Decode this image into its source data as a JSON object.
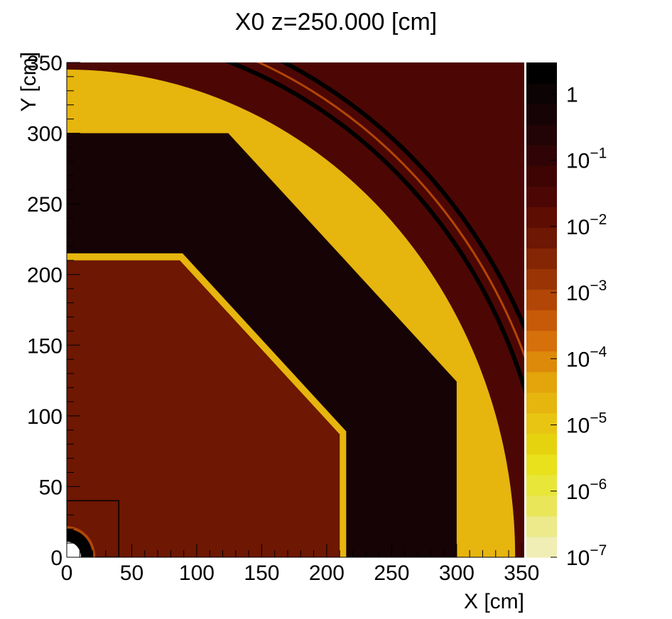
{
  "chart_data": {
    "type": "heatmap",
    "title": "X0 z=250.000 [cm]",
    "xlabel": "X [cm]",
    "ylabel": "Y [cm]",
    "xlim": [
      0,
      352
    ],
    "ylim": [
      0,
      350
    ],
    "x_ticks": [
      "0",
      "50",
      "100",
      "150",
      "200",
      "250",
      "300",
      "350"
    ],
    "y_ticks": [
      "0",
      "50",
      "100",
      "150",
      "200",
      "250",
      "300",
      "350"
    ],
    "colorbar": {
      "scale": "log",
      "range": [
        1e-07,
        3
      ],
      "tick_values": [
        1e-07,
        1e-06,
        1e-05,
        0.0001,
        0.001,
        0.01,
        0.1,
        1
      ],
      "tick_bases": [
        "10",
        "10",
        "10",
        "10",
        "10",
        "10",
        "10",
        "1"
      ],
      "tick_exponents": [
        "−7",
        "−6",
        "−5",
        "−4",
        "−3",
        "−2",
        "−1",
        ""
      ],
      "colors": [
        "#f0eeb5",
        "#ecea8a",
        "#eae65a",
        "#e9e63a",
        "#e8e11c",
        "#e6d30f",
        "#e8c511",
        "#e6b50e",
        "#e3a40c",
        "#dd8a0a",
        "#d6700a",
        "#c65a08",
        "#b24606",
        "#9a3404",
        "#842503",
        "#6e1703",
        "#5e0d03",
        "#4c0704",
        "#3e0404",
        "#300406",
        "#220406",
        "#160305",
        "#0b0304",
        "#000000"
      ]
    },
    "regions": [
      {
        "name": "outer-field",
        "x0_value": 0.02
      },
      {
        "name": "outer-ring-band",
        "inner_radius": 300,
        "outer_radius": 345,
        "x0_value": 3e-05
      },
      {
        "name": "outer-octagon-body",
        "half_width": 300,
        "x0_value": 0.5
      },
      {
        "name": "inner-octagon-shell",
        "half_width": 215,
        "x0_value": 3e-05
      },
      {
        "name": "inner-octagon-body",
        "half_width": 210,
        "x0_value": 0.005
      },
      {
        "name": "beam-pipe-box",
        "half_width": 40
      },
      {
        "name": "beam-pipe",
        "radius": 20,
        "x0_value": 2
      }
    ],
    "grid": false
  }
}
